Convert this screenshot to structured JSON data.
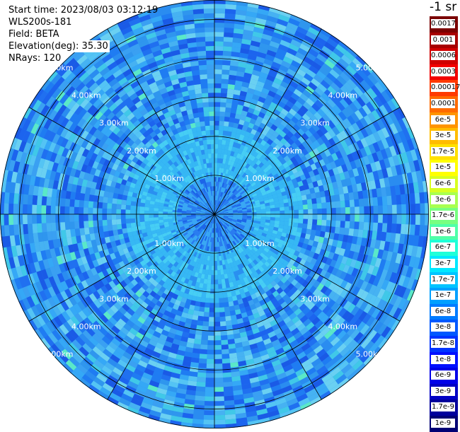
{
  "info": {
    "start_time": "Start time: 2023/08/03 03:12:19",
    "instrument": "WLS200s-181",
    "field": "Field: BETA",
    "elevation": "Elevation(deg): 35.30",
    "nrays": "NRays: 120"
  },
  "colorbar": {
    "title": "-1 sr",
    "labels": [
      "0.0017",
      "0.001",
      "0.0006",
      "0.0003",
      "0.00017",
      "0.0001",
      "6e-5",
      "3e-5",
      "1.7e-5",
      "1e-5",
      "6e-6",
      "3e-6",
      "1.7e-6",
      "1e-6",
      "6e-7",
      "3e-7",
      "1.7e-7",
      "1e-7",
      "6e-8",
      "3e-8",
      "1.7e-8",
      "1e-8",
      "6e-9",
      "3e-9",
      "1.7e-9",
      "1e-9"
    ],
    "colors": [
      "#7a0000",
      "#a80000",
      "#d00000",
      "#f20000",
      "#ff3a00",
      "#ff6a00",
      "#ff9400",
      "#ffbc00",
      "#ffe000",
      "#ffff00",
      "#d8ff20",
      "#a8ff50",
      "#78ff80",
      "#50ffa8",
      "#20ffd8",
      "#00e8ff",
      "#00c4ff",
      "#00a0ff",
      "#007cff",
      "#0058ff",
      "#0034ff",
      "#0010ff",
      "#0000e8",
      "#0000c4",
      "#00009c",
      "#000074"
    ]
  },
  "chart_data": {
    "type": "heatmap",
    "projection": "polar-ppi",
    "range_rings_km": [
      1,
      2,
      3,
      4,
      5
    ],
    "ring_labels": [
      "1.00km",
      "2.00km",
      "3.00km",
      "4.00km",
      "5.00km"
    ],
    "max_range_km": 5.5,
    "n_rays": 120,
    "spokes_deg": [
      0,
      30,
      60,
      90,
      120,
      150,
      180,
      210,
      240,
      270,
      300,
      330
    ],
    "field": "BETA",
    "dominant_values": "1e-8 to 1e-7"
  }
}
